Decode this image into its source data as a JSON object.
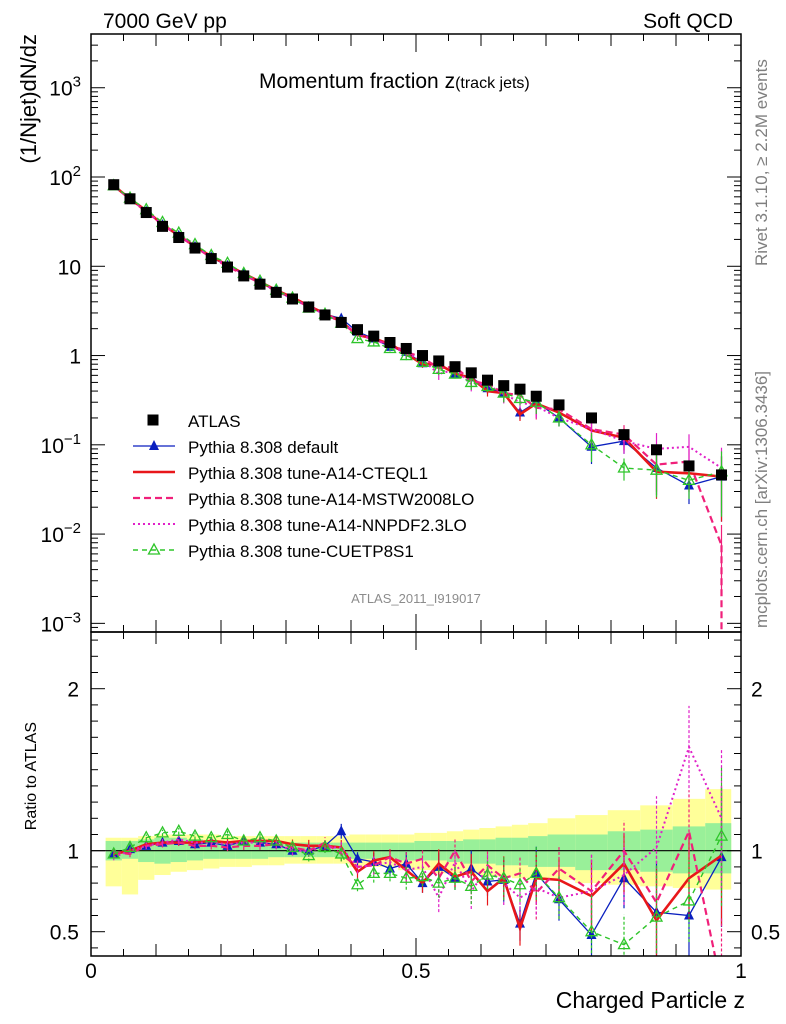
{
  "header": {
    "left": "7000 GeV pp",
    "right": "Soft QCD"
  },
  "side_labels": {
    "rivet": "Rivet 3.1.10, ≥ 2.2M events",
    "mcplots": "mcplots.cern.ch [arXiv:1306.3436]"
  },
  "colors": {
    "atlas": "#000000",
    "default": "#0a1fbf",
    "a14_cteql1": "#e8171a",
    "a14_mstw": "#f0207a",
    "a14_nnpdf": "#e020c8",
    "cuetp8s1": "#2ec52a",
    "band_outer": "#ffff99",
    "band_inner": "#99f099",
    "watermark": "#8c8c8c"
  },
  "chart_data": [
    {
      "type": "line",
      "title": "Momentum fraction z(track jets)",
      "title_main": "Momentum fraction z",
      "title_sub": "(track jets)",
      "watermark": "ATLAS_2011_I919017",
      "ylabel": "(1/Njet)dN/dz",
      "yscale": "log",
      "ylim": [
        0.0008,
        4000
      ],
      "xlim": [
        0,
        1
      ],
      "ytick_labels": [
        {
          "value": 0.001,
          "base": "10",
          "exp": "−3"
        },
        {
          "value": 0.01,
          "base": "10",
          "exp": "−2"
        },
        {
          "value": 0.1,
          "base": "10",
          "exp": "−1"
        },
        {
          "value": 1,
          "base": "1",
          "exp": ""
        },
        {
          "value": 10,
          "base": "10",
          "exp": ""
        },
        {
          "value": 100,
          "base": "10",
          "exp": "2"
        },
        {
          "value": 1000,
          "base": "10",
          "exp": "3"
        }
      ],
      "legend_position": "lower-left",
      "x": [
        0.035,
        0.06,
        0.085,
        0.11,
        0.135,
        0.16,
        0.185,
        0.21,
        0.235,
        0.26,
        0.285,
        0.31,
        0.335,
        0.36,
        0.385,
        0.41,
        0.435,
        0.46,
        0.485,
        0.51,
        0.535,
        0.56,
        0.585,
        0.61,
        0.635,
        0.66,
        0.685,
        0.72,
        0.77,
        0.82,
        0.87,
        0.92,
        0.97
      ],
      "series": [
        {
          "name": "ATLAS",
          "key": "atlas",
          "style": "square",
          "values": [
            82,
            57,
            40,
            28,
            21,
            16,
            12.2,
            9.8,
            7.8,
            6.3,
            5.1,
            4.3,
            3.5,
            2.85,
            2.35,
            1.95,
            1.65,
            1.4,
            1.2,
            1.0,
            0.87,
            0.75,
            0.64,
            0.53,
            0.46,
            0.42,
            0.35,
            0.28,
            0.2,
            0.13,
            0.088,
            0.058,
            0.046
          ]
        },
        {
          "name": "Pythia 8.308 default",
          "key": "default",
          "style": "line-triangle",
          "values": [
            80,
            57,
            41,
            29,
            22,
            16.5,
            12.6,
            10.1,
            8.2,
            6.6,
            5.3,
            4.3,
            3.5,
            2.9,
            2.6,
            1.85,
            1.55,
            1.25,
            1.1,
            0.82,
            0.8,
            0.62,
            0.57,
            0.43,
            0.38,
            0.23,
            0.3,
            0.2,
            0.095,
            0.11,
            0.055,
            0.035,
            0.044
          ]
        },
        {
          "name": "Pythia 8.308 tune-A14-CTEQL1",
          "key": "a14_cteql1",
          "style": "line",
          "values": [
            80,
            57,
            42,
            29.5,
            22,
            16.8,
            12.9,
            10.3,
            8.3,
            6.7,
            5.4,
            4.5,
            3.6,
            2.95,
            2.4,
            1.7,
            1.55,
            1.35,
            1.05,
            0.8,
            0.8,
            0.63,
            0.56,
            0.4,
            0.38,
            0.22,
            0.29,
            0.23,
            0.145,
            0.12,
            0.05,
            0.048,
            0.044
          ]
        },
        {
          "name": "Pythia 8.308 tune-A14-MSTW2008LO",
          "key": "a14_mstw",
          "style": "dashed",
          "values": [
            81,
            56,
            41,
            29,
            22,
            16.5,
            12.5,
            10.0,
            8.0,
            6.5,
            5.3,
            4.4,
            3.5,
            3.0,
            2.3,
            1.75,
            1.5,
            1.35,
            1.1,
            0.95,
            0.72,
            0.75,
            0.52,
            0.48,
            0.38,
            0.36,
            0.26,
            0.25,
            0.15,
            0.13,
            0.06,
            0.065,
            0.0075
          ]
        },
        {
          "name": "Pythia 8.308 tune-A14-NNPDF2.3LO",
          "key": "a14_nnpdf",
          "style": "dotted",
          "values": [
            79,
            57,
            41,
            29.5,
            22.5,
            16.8,
            12.8,
            10.2,
            8.2,
            6.6,
            5.3,
            4.3,
            3.5,
            2.9,
            2.4,
            1.75,
            1.5,
            1.3,
            1.05,
            0.9,
            0.62,
            0.7,
            0.48,
            0.47,
            0.37,
            0.3,
            0.27,
            0.2,
            0.15,
            0.11,
            0.09,
            0.095,
            0.055
          ]
        },
        {
          "name": "Pythia 8.308 tune-CUETP8S1",
          "key": "cuetp8s1",
          "style": "dashed-open-triangle",
          "values": [
            80,
            58,
            43,
            31,
            23.5,
            17.5,
            13.2,
            10.8,
            8.3,
            6.8,
            5.4,
            4.4,
            3.4,
            2.9,
            2.3,
            1.55,
            1.42,
            1.2,
            1.0,
            0.84,
            0.7,
            0.62,
            0.5,
            0.45,
            0.38,
            0.33,
            0.3,
            0.2,
            0.1,
            0.055,
            0.052,
            0.04,
            0.05
          ]
        }
      ]
    },
    {
      "type": "line",
      "title": "",
      "ylabel": "Ratio to ATLAS",
      "xlabel": "Charged Particle z",
      "ylim": [
        0.35,
        2.35
      ],
      "xlim": [
        0,
        1
      ],
      "xtick_labels": [
        "0",
        "0.5",
        "1"
      ],
      "ytick_labels": [
        "0.5",
        "1",
        "2"
      ],
      "band_inner": [
        [
          0.94,
          1.06
        ],
        [
          0.95,
          1.06
        ],
        [
          0.93,
          1.07
        ],
        [
          0.92,
          1.08
        ],
        [
          0.93,
          1.08
        ],
        [
          0.94,
          1.07
        ],
        [
          0.95,
          1.06
        ],
        [
          0.95,
          1.06
        ],
        [
          0.95,
          1.05
        ],
        [
          0.95,
          1.05
        ],
        [
          0.96,
          1.05
        ],
        [
          0.96,
          1.05
        ],
        [
          0.96,
          1.05
        ],
        [
          0.96,
          1.05
        ],
        [
          0.96,
          1.05
        ],
        [
          0.95,
          1.05
        ],
        [
          0.95,
          1.05
        ],
        [
          0.95,
          1.05
        ],
        [
          0.94,
          1.05
        ],
        [
          0.94,
          1.06
        ],
        [
          0.94,
          1.06
        ],
        [
          0.93,
          1.06
        ],
        [
          0.92,
          1.07
        ],
        [
          0.92,
          1.07
        ],
        [
          0.91,
          1.08
        ],
        [
          0.91,
          1.08
        ],
        [
          0.9,
          1.09
        ],
        [
          0.9,
          1.1
        ],
        [
          0.88,
          1.1
        ],
        [
          0.88,
          1.12
        ],
        [
          0.87,
          1.13
        ],
        [
          0.86,
          1.15
        ],
        [
          0.86,
          1.17
        ]
      ],
      "band_outer": [
        [
          0.78,
          1.08
        ],
        [
          0.73,
          1.08
        ],
        [
          0.82,
          1.09
        ],
        [
          0.85,
          1.1
        ],
        [
          0.87,
          1.1
        ],
        [
          0.88,
          1.1
        ],
        [
          0.89,
          1.1
        ],
        [
          0.9,
          1.09
        ],
        [
          0.9,
          1.09
        ],
        [
          0.91,
          1.09
        ],
        [
          0.91,
          1.09
        ],
        [
          0.92,
          1.09
        ],
        [
          0.92,
          1.09
        ],
        [
          0.92,
          1.09
        ],
        [
          0.92,
          1.09
        ],
        [
          0.9,
          1.1
        ],
        [
          0.9,
          1.1
        ],
        [
          0.9,
          1.1
        ],
        [
          0.88,
          1.1
        ],
        [
          0.88,
          1.11
        ],
        [
          0.86,
          1.11
        ],
        [
          0.86,
          1.12
        ],
        [
          0.85,
          1.13
        ],
        [
          0.84,
          1.14
        ],
        [
          0.84,
          1.15
        ],
        [
          0.83,
          1.16
        ],
        [
          0.82,
          1.17
        ],
        [
          0.82,
          1.2
        ],
        [
          0.8,
          1.22
        ],
        [
          0.79,
          1.25
        ],
        [
          0.78,
          1.28
        ],
        [
          0.77,
          1.32
        ],
        [
          0.76,
          1.38
        ]
      ],
      "series": [
        {
          "name": "Pythia 8.308 default",
          "key": "default",
          "values": [
            0.98,
            1.01,
            1.03,
            1.05,
            1.06,
            1.04,
            1.05,
            1.03,
            1.06,
            1.05,
            1.04,
            1.0,
            1.0,
            1.03,
            1.12,
            0.95,
            0.93,
            0.89,
            0.92,
            0.8,
            0.9,
            0.83,
            0.89,
            0.81,
            0.82,
            0.55,
            0.86,
            0.7,
            0.48,
            0.83,
            0.62,
            0.6,
            0.96
          ]
        },
        {
          "name": "Pythia 8.308 tune-A14-CTEQL1",
          "key": "a14_cteql1",
          "values": [
            0.98,
            1.0,
            1.04,
            1.05,
            1.05,
            1.05,
            1.06,
            1.05,
            1.06,
            1.06,
            1.06,
            1.04,
            1.03,
            1.03,
            1.02,
            0.87,
            0.94,
            0.96,
            0.88,
            0.8,
            0.92,
            0.84,
            0.87,
            0.75,
            0.83,
            0.52,
            0.83,
            0.82,
            0.72,
            0.92,
            0.57,
            0.83,
            0.97
          ]
        },
        {
          "name": "Pythia 8.308 tune-A14-MSTW2008LO",
          "key": "a14_mstw",
          "values": [
            0.99,
            0.98,
            1.03,
            1.04,
            1.05,
            1.03,
            1.03,
            1.02,
            1.03,
            1.03,
            1.04,
            1.02,
            1.0,
            1.05,
            0.98,
            0.9,
            0.91,
            0.96,
            0.92,
            0.95,
            0.83,
            1.0,
            0.81,
            0.91,
            0.83,
            0.86,
            0.74,
            0.89,
            0.75,
            1.0,
            0.68,
            1.12,
            0.16
          ]
        },
        {
          "name": "Pythia 8.308 tune-A14-NNPDF2.3LO",
          "key": "a14_nnpdf",
          "values": [
            0.96,
            1.0,
            1.03,
            1.05,
            1.07,
            1.05,
            1.05,
            1.04,
            1.05,
            1.05,
            1.04,
            1.0,
            1.0,
            1.02,
            1.02,
            0.9,
            0.91,
            0.93,
            0.88,
            0.9,
            0.71,
            0.93,
            0.75,
            0.89,
            0.8,
            0.71,
            0.77,
            0.71,
            0.75,
            0.85,
            1.02,
            1.64,
            1.2
          ]
        },
        {
          "name": "Pythia 8.308 tune-CUETP8S1",
          "key": "cuetp8s1",
          "values": [
            0.98,
            1.02,
            1.08,
            1.11,
            1.12,
            1.09,
            1.08,
            1.1,
            1.06,
            1.08,
            1.06,
            1.02,
            0.97,
            1.02,
            0.98,
            0.79,
            0.86,
            0.86,
            0.83,
            0.84,
            0.8,
            0.83,
            0.78,
            0.85,
            0.83,
            0.79,
            0.86,
            0.71,
            0.5,
            0.42,
            0.59,
            0.69,
            1.09
          ]
        }
      ]
    }
  ]
}
